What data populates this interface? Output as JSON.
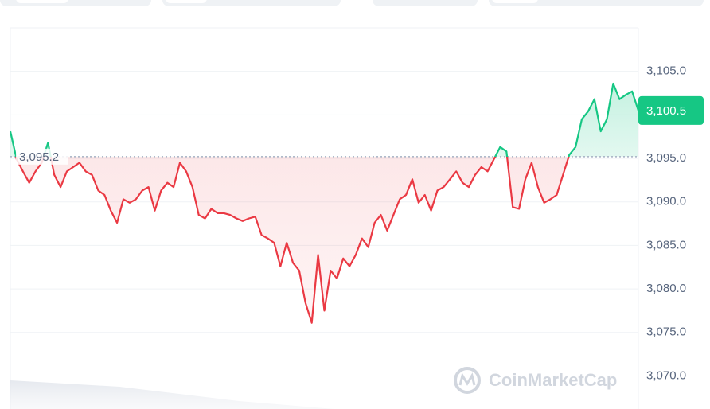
{
  "chart_data": {
    "type": "line",
    "values": [
      3098.1,
      3094.9,
      3093.5,
      3092.2,
      3093.5,
      3094.5,
      3096.8,
      3093.1,
      3091.7,
      3093.5,
      3094.0,
      3094.5,
      3093.5,
      3093.1,
      3091.3,
      3090.8,
      3089.0,
      3087.6,
      3090.3,
      3089.9,
      3090.3,
      3091.3,
      3091.7,
      3089.0,
      3091.3,
      3092.2,
      3091.7,
      3094.5,
      3093.5,
      3091.7,
      3088.5,
      3088.1,
      3089.2,
      3088.7,
      3088.7,
      3088.5,
      3088.1,
      3087.8,
      3088.1,
      3088.3,
      3086.2,
      3085.8,
      3085.3,
      3082.6,
      3085.3,
      3083.0,
      3082.1,
      3078.4,
      3076.1,
      3083.9,
      3077.5,
      3082.1,
      3081.2,
      3083.5,
      3082.6,
      3083.9,
      3085.8,
      3084.8,
      3087.6,
      3088.5,
      3086.7,
      3088.5,
      3090.3,
      3090.8,
      3092.6,
      3089.9,
      3090.8,
      3089.0,
      3091.3,
      3091.7,
      3092.6,
      3093.5,
      3092.2,
      3091.7,
      3093.1,
      3094.0,
      3093.5,
      3094.9,
      3096.3,
      3095.8,
      3089.4,
      3089.2,
      3092.6,
      3094.5,
      3091.7,
      3089.9,
      3090.3,
      3090.8,
      3093.1,
      3095.4,
      3096.3,
      3099.5,
      3100.4,
      3101.8,
      3098.1,
      3099.5,
      3103.6,
      3101.8,
      3102.3,
      3102.7,
      3100.5
    ],
    "up_color": "#16c784",
    "down_color": "#ea3943",
    "baseline": {
      "value": 3095.2,
      "label": "3,095.2"
    },
    "current": {
      "value": 3100.5,
      "label": "3,100.5"
    },
    "ylim": [
      3066.2,
      3110.0
    ],
    "yticks": [
      {
        "value": 3070,
        "label": "3,070.0"
      },
      {
        "value": 3075,
        "label": "3,075.0"
      },
      {
        "value": 3080,
        "label": "3,080.0"
      },
      {
        "value": 3085,
        "label": "3,085.0"
      },
      {
        "value": 3090,
        "label": "3,090.0"
      },
      {
        "value": 3095,
        "label": "3,095.0"
      },
      {
        "value": 3100,
        "label": "3,100.0"
      },
      {
        "value": 3105,
        "label": "3,105.0"
      }
    ],
    "grid": true,
    "watermark": "CoinMarketCap"
  }
}
